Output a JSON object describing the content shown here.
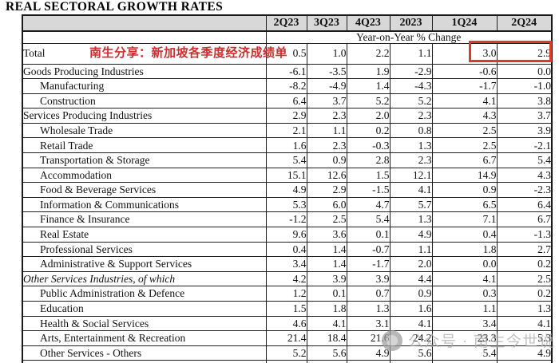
{
  "page": {
    "title": "REAL SECTORAL GROWTH RATES"
  },
  "annotation": {
    "text": "南生分享：新加坡各季度经济成绩单"
  },
  "watermark": {
    "icon": "publisher-logo-icon",
    "text": "公众号 · 南生今世说"
  },
  "colors": {
    "annotation_red": "#cc2f2e",
    "highlight_box_red": "#e0392b",
    "header_bg": "#d8d8d8",
    "watermark_gray": "#a8a8a8"
  },
  "table": {
    "columns": [
      "2Q23",
      "3Q23",
      "4Q23",
      "2023",
      "1Q24",
      "2Q24"
    ],
    "subheader": "Year-on-Year % Change",
    "highlighted_cells": {
      "row": "Total",
      "columns": [
        "1Q24",
        "2Q24"
      ]
    },
    "rows": [
      {
        "label": "Total",
        "indent": 0,
        "italic": false,
        "total": true,
        "values": [
          "0.5",
          "1.0",
          "2.2",
          "1.1",
          "3.0",
          "2.9"
        ]
      },
      {
        "label": "Goods Producing Industries",
        "indent": 0,
        "italic": false,
        "values": [
          "-6.1",
          "-3.5",
          "1.9",
          "-2.9",
          "-0.6",
          "0.0"
        ]
      },
      {
        "label": "Manufacturing",
        "indent": 1,
        "italic": false,
        "values": [
          "-8.2",
          "-4.9",
          "1.4",
          "-4.3",
          "-1.7",
          "-1.0"
        ]
      },
      {
        "label": "Construction",
        "indent": 1,
        "italic": false,
        "values": [
          "6.4",
          "3.7",
          "5.2",
          "5.2",
          "4.1",
          "3.8"
        ]
      },
      {
        "label": "Services Producing Industries",
        "indent": 0,
        "italic": false,
        "values": [
          "2.9",
          "2.3",
          "2.0",
          "2.3",
          "4.3",
          "3.7"
        ]
      },
      {
        "label": "Wholesale Trade",
        "indent": 1,
        "italic": false,
        "values": [
          "2.1",
          "1.1",
          "0.2",
          "0.8",
          "2.5",
          "3.9"
        ]
      },
      {
        "label": "Retail Trade",
        "indent": 1,
        "italic": false,
        "values": [
          "1.6",
          "2.3",
          "-0.3",
          "1.3",
          "2.5",
          "-2.1"
        ]
      },
      {
        "label": "Transportation & Storage",
        "indent": 1,
        "italic": false,
        "values": [
          "5.4",
          "0.9",
          "2.8",
          "2.3",
          "6.7",
          "5.4"
        ]
      },
      {
        "label": "Accommodation",
        "indent": 1,
        "italic": false,
        "values": [
          "15.1",
          "12.6",
          "1.5",
          "12.1",
          "14.9",
          "4.3"
        ]
      },
      {
        "label": "Food & Beverage Services",
        "indent": 1,
        "italic": false,
        "values": [
          "4.9",
          "2.9",
          "-1.5",
          "4.1",
          "0.9",
          "-2.3"
        ]
      },
      {
        "label": "Information & Communications",
        "indent": 1,
        "italic": false,
        "values": [
          "5.3",
          "6.0",
          "4.7",
          "5.7",
          "6.5",
          "6.4"
        ]
      },
      {
        "label": "Finance & Insurance",
        "indent": 1,
        "italic": false,
        "values": [
          "-1.2",
          "2.5",
          "5.4",
          "1.3",
          "7.1",
          "6.7"
        ]
      },
      {
        "label": "Real Estate",
        "indent": 1,
        "italic": false,
        "values": [
          "9.6",
          "3.6",
          "0.1",
          "4.9",
          "0.4",
          "-1.3"
        ]
      },
      {
        "label": "Professional Services",
        "indent": 1,
        "italic": false,
        "values": [
          "0.4",
          "1.4",
          "-0.7",
          "1.1",
          "1.8",
          "2.7"
        ]
      },
      {
        "label": "Administrative & Support Services",
        "indent": 1,
        "italic": false,
        "values": [
          "3.4",
          "1.4",
          "-1.7",
          "2.0",
          "0.0",
          "0.2"
        ]
      },
      {
        "label": "Other Services Industries, of which",
        "indent": 0,
        "italic": true,
        "values": [
          "4.2",
          "3.9",
          "3.9",
          "4.4",
          "4.1",
          "2.5"
        ]
      },
      {
        "label": "Public Administration & Defence",
        "indent": 1,
        "italic": false,
        "values": [
          "1.2",
          "0.1",
          "0.7",
          "0.9",
          "0.3",
          "0.2"
        ]
      },
      {
        "label": "Education",
        "indent": 1,
        "italic": false,
        "values": [
          "1.5",
          "1.8",
          "1.3",
          "1.6",
          "1.1",
          "1.3"
        ]
      },
      {
        "label": "Health & Social Services",
        "indent": 1,
        "italic": false,
        "values": [
          "4.6",
          "4.1",
          "3.1",
          "4.1",
          "3.4",
          "4.1"
        ]
      },
      {
        "label": "Arts, Entertainment & Recreation",
        "indent": 1,
        "italic": false,
        "values": [
          "21.4",
          "18.4",
          "21.6",
          "24.2",
          "23.3",
          "5.3"
        ]
      },
      {
        "label": "Other Services - Others",
        "indent": 1,
        "italic": false,
        "values": [
          "5.2",
          "5.6",
          "4.9",
          "5.6",
          "5.4",
          "4.9"
        ]
      }
    ]
  }
}
